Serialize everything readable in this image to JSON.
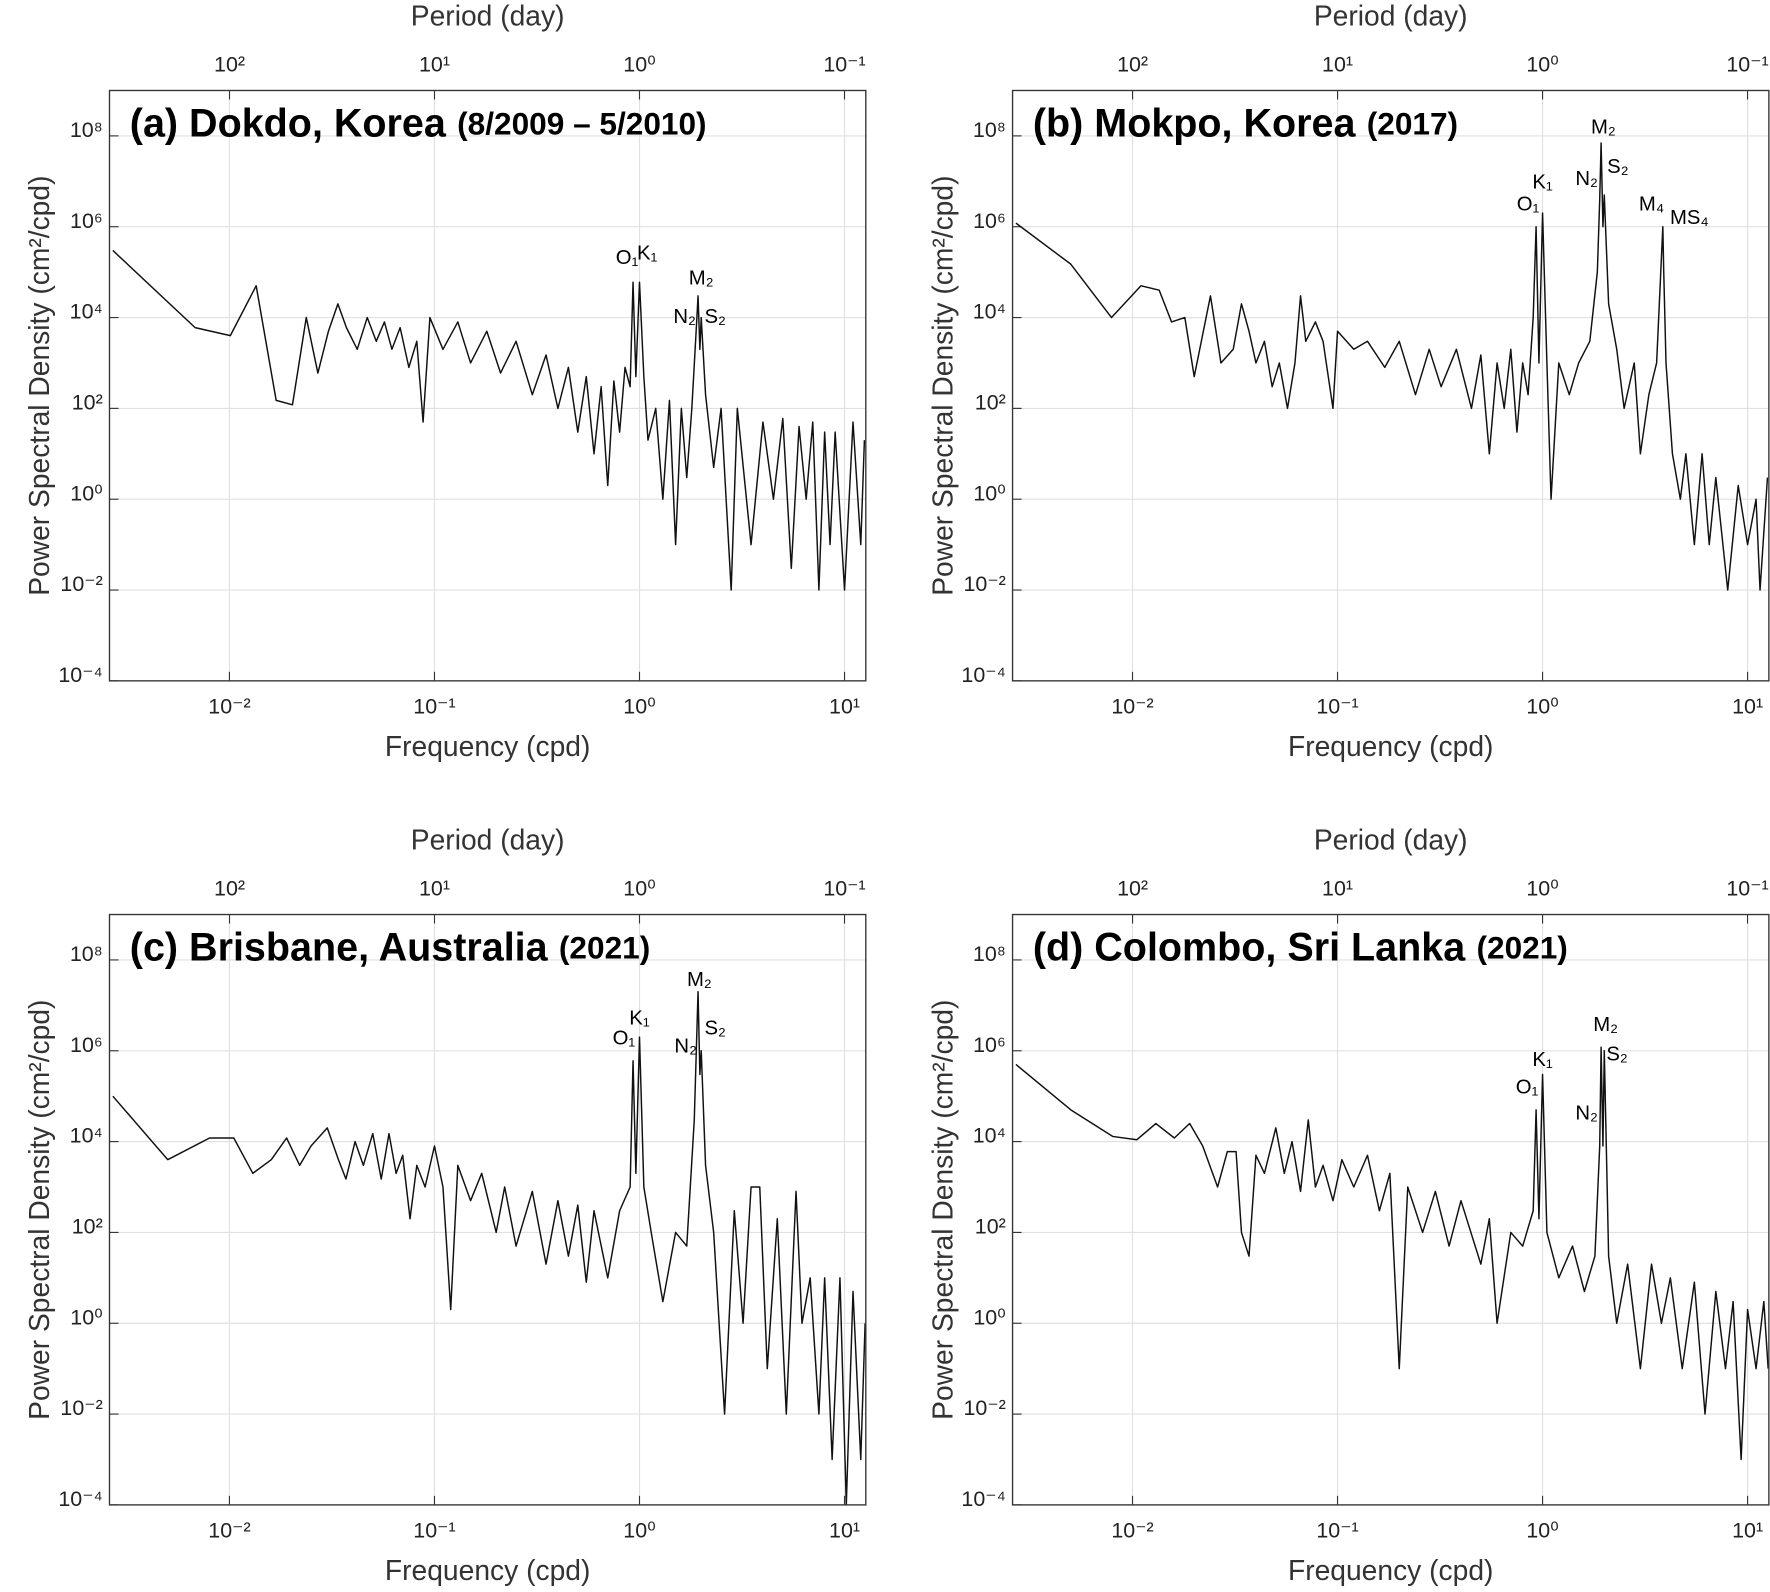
{
  "chart_data": [
    {
      "type": "line",
      "title": "(a) Dokdo, Korea",
      "subtitle": "(8/2009 – 5/2010)",
      "xlabel": "Frequency (cpd)",
      "ylabel": "Power Spectral Density (cm²/cpd)",
      "x2label": "Period (day)",
      "xscale": "log",
      "yscale": "log",
      "grid": true,
      "color": "#111111",
      "xlim": [
        0.0026,
        12.7
      ],
      "ylim": [
        0.0001,
        1000000000.0
      ],
      "x2lim": [
        385,
        0.0787
      ],
      "xticks": [
        {
          "value": 0.01,
          "label": "10⁻²"
        },
        {
          "value": 0.1,
          "label": "10⁻¹"
        },
        {
          "value": 1,
          "label": "10⁰"
        },
        {
          "value": 10,
          "label": "10¹"
        }
      ],
      "x2ticks": [
        {
          "value": 100,
          "label": "10²"
        },
        {
          "value": 10,
          "label": "10¹"
        },
        {
          "value": 1,
          "label": "10⁰"
        },
        {
          "value": 0.1,
          "label": "10⁻¹"
        }
      ],
      "yticks": [
        {
          "value": 0.0001,
          "label": "10⁻⁴"
        },
        {
          "value": 0.01,
          "label": "10⁻²"
        },
        {
          "value": 1,
          "label": "10⁰"
        },
        {
          "value": 100,
          "label": "10²"
        },
        {
          "value": 10000.0,
          "label": "10⁴"
        },
        {
          "value": 1000000.0,
          "label": "10⁶"
        },
        {
          "value": 100000000.0,
          "label": "10⁸"
        }
      ],
      "x": [
        0.0027,
        0.0068,
        0.0101,
        0.0135,
        0.0169,
        0.0203,
        0.0237,
        0.027,
        0.0304,
        0.0338,
        0.0372,
        0.042,
        0.047,
        0.052,
        0.057,
        0.062,
        0.068,
        0.075,
        0.082,
        0.088,
        0.095,
        0.11,
        0.13,
        0.15,
        0.18,
        0.21,
        0.25,
        0.3,
        0.35,
        0.4,
        0.45,
        0.5,
        0.55,
        0.6,
        0.65,
        0.7,
        0.75,
        0.8,
        0.85,
        0.9,
        0.93,
        0.96,
        1.0,
        1.05,
        1.1,
        1.2,
        1.3,
        1.4,
        1.5,
        1.6,
        1.7,
        1.8,
        1.9,
        1.93,
        1.97,
        2.0,
        2.1,
        2.3,
        2.5,
        2.8,
        3.0,
        3.5,
        4.0,
        4.5,
        5.0,
        5.5,
        6.0,
        6.5,
        7.0,
        7.5,
        8.0,
        8.5,
        9.0,
        10,
        11,
        12,
        12.5
      ],
      "values": [
        300000.0,
        6000.0,
        4000.0,
        50000.0,
        150,
        120,
        10000.0,
        600,
        5000.0,
        20000.0,
        6000.0,
        2000.0,
        10000.0,
        3000.0,
        8000.0,
        2000.0,
        6000.0,
        800,
        3000.0,
        50,
        10000.0,
        2000.0,
        8000.0,
        1000.0,
        5000.0,
        600,
        3000.0,
        200,
        1500,
        100,
        800,
        30,
        500,
        10,
        300,
        2,
        400,
        30,
        800,
        300,
        60000.0,
        500,
        60000.0,
        500,
        20,
        100,
        1,
        150,
        0.1,
        100,
        3,
        100,
        8000.0,
        30000.0,
        2000.0,
        10000.0,
        200,
        5,
        100,
        0.01,
        100,
        0.1,
        50,
        1,
        60,
        0.03,
        40,
        1,
        50,
        0.01,
        30,
        0.1,
        30,
        0.01,
        50,
        0.1,
        20
      ],
      "annotations": [
        {
          "text": "O₁",
          "x": 0.87,
          "y": 200000.0
        },
        {
          "text": "K₁",
          "x": 1.09,
          "y": 250000.0
        },
        {
          "text": "M₂",
          "x": 2.0,
          "y": 70000.0
        },
        {
          "text": "N₂",
          "x": 1.66,
          "y": 10000.0
        },
        {
          "text": "S₂",
          "x": 2.34,
          "y": 10000.0
        }
      ]
    },
    {
      "type": "line",
      "title": "(b) Mokpo, Korea",
      "subtitle": "(2017)",
      "xlabel": "Frequency (cpd)",
      "ylabel": "Power Spectral Density (cm²/cpd)",
      "x2label": "Period (day)",
      "xscale": "log",
      "yscale": "log",
      "grid": true,
      "color": "#111111",
      "xlim": [
        0.0026,
        12.7
      ],
      "ylim": [
        0.0001,
        1000000000.0
      ],
      "x2lim": [
        385,
        0.0787
      ],
      "xticks": [
        {
          "value": 0.01,
          "label": "10⁻²"
        },
        {
          "value": 0.1,
          "label": "10⁻¹"
        },
        {
          "value": 1,
          "label": "10⁰"
        },
        {
          "value": 10,
          "label": "10¹"
        }
      ],
      "x2ticks": [
        {
          "value": 100,
          "label": "10²"
        },
        {
          "value": 10,
          "label": "10¹"
        },
        {
          "value": 1,
          "label": "10⁰"
        },
        {
          "value": 0.1,
          "label": "10⁻¹"
        }
      ],
      "yticks": [
        {
          "value": 0.0001,
          "label": "10⁻⁴"
        },
        {
          "value": 0.01,
          "label": "10⁻²"
        },
        {
          "value": 1,
          "label": "10⁰"
        },
        {
          "value": 100,
          "label": "10²"
        },
        {
          "value": 10000.0,
          "label": "10⁴"
        },
        {
          "value": 1000000.0,
          "label": "10⁶"
        },
        {
          "value": 100000000.0,
          "label": "10⁸"
        }
      ],
      "x": [
        0.0027,
        0.005,
        0.0079,
        0.011,
        0.0135,
        0.0155,
        0.018,
        0.02,
        0.024,
        0.027,
        0.031,
        0.034,
        0.037,
        0.04,
        0.044,
        0.048,
        0.052,
        0.057,
        0.062,
        0.066,
        0.07,
        0.078,
        0.085,
        0.095,
        0.1,
        0.12,
        0.14,
        0.17,
        0.2,
        0.24,
        0.28,
        0.32,
        0.38,
        0.45,
        0.5,
        0.55,
        0.6,
        0.65,
        0.7,
        0.75,
        0.8,
        0.85,
        0.9,
        0.93,
        0.96,
        1.0,
        1.05,
        1.1,
        1.2,
        1.35,
        1.5,
        1.7,
        1.85,
        1.9,
        1.93,
        1.97,
        2.0,
        2.1,
        2.3,
        2.5,
        2.8,
        3.0,
        3.3,
        3.6,
        3.86,
        3.9,
        4.0,
        4.3,
        4.7,
        5.0,
        5.5,
        6.0,
        6.5,
        7.0,
        8.0,
        9.0,
        10,
        11,
        11.5,
        12.5
      ],
      "values": [
        1200000.0,
        150000.0,
        10000.0,
        50000.0,
        40000.0,
        8000.0,
        10000.0,
        500,
        30000.0,
        1000.0,
        2000.0,
        20000.0,
        5000.0,
        1000.0,
        3000.0,
        300,
        1000.0,
        100,
        1000.0,
        30000.0,
        3000.0,
        8000.0,
        3000.0,
        100,
        5000.0,
        2000.0,
        3000.0,
        800,
        3000.0,
        200,
        2000.0,
        300,
        2000.0,
        100,
        1500,
        10,
        1000.0,
        100,
        2000.0,
        30,
        1000.0,
        200,
        10000.0,
        1000000.0,
        1000.0,
        2000000.0,
        1000.0,
        1,
        1000.0,
        200,
        1000.0,
        3000.0,
        100000.0,
        4000000.0,
        70000000.0,
        1000000.0,
        5000000.0,
        20000.0,
        2000.0,
        100,
        1000.0,
        10,
        200,
        1000.0,
        1000000.0,
        100000.0,
        1000.0,
        10,
        1,
        10,
        0.1,
        10,
        0.1,
        3,
        0.01,
        2,
        0.1,
        1,
        0.01,
        3
      ],
      "annotations": [
        {
          "text": "O₁",
          "x": 0.85,
          "y": 3000000.0
        },
        {
          "text": "K₁",
          "x": 1.0,
          "y": 9000000.0
        },
        {
          "text": "N₂",
          "x": 1.64,
          "y": 11000000.0
        },
        {
          "text": "M₂",
          "x": 1.98,
          "y": 150000000.0
        },
        {
          "text": "S₂",
          "x": 2.33,
          "y": 20000000.0
        },
        {
          "text": "M₄",
          "x": 3.4,
          "y": 3000000.0
        },
        {
          "text": "MS₄",
          "x": 5.2,
          "y": 1500000.0
        }
      ]
    },
    {
      "type": "line",
      "title": "(c) Brisbane, Australia",
      "subtitle": "(2021)",
      "xlabel": "Frequency (cpd)",
      "ylabel": "Power Spectral Density (cm²/cpd)",
      "x2label": "Period (day)",
      "xscale": "log",
      "yscale": "log",
      "grid": true,
      "color": "#111111",
      "xlim": [
        0.0026,
        12.7
      ],
      "ylim": [
        0.0001,
        1000000000.0
      ],
      "x2lim": [
        385,
        0.0787
      ],
      "xticks": [
        {
          "value": 0.01,
          "label": "10⁻²"
        },
        {
          "value": 0.1,
          "label": "10⁻¹"
        },
        {
          "value": 1,
          "label": "10⁰"
        },
        {
          "value": 10,
          "label": "10¹"
        }
      ],
      "x2ticks": [
        {
          "value": 100,
          "label": "10²"
        },
        {
          "value": 10,
          "label": "10¹"
        },
        {
          "value": 1,
          "label": "10⁰"
        },
        {
          "value": 0.1,
          "label": "10⁻¹"
        }
      ],
      "yticks": [
        {
          "value": 0.0001,
          "label": "10⁻⁴"
        },
        {
          "value": 0.01,
          "label": "10⁻²"
        },
        {
          "value": 1,
          "label": "10⁰"
        },
        {
          "value": 100,
          "label": "10²"
        },
        {
          "value": 10000.0,
          "label": "10⁴"
        },
        {
          "value": 1000000.0,
          "label": "10⁶"
        },
        {
          "value": 100000000.0,
          "label": "10⁸"
        }
      ],
      "x": [
        0.0027,
        0.005,
        0.008,
        0.0105,
        0.013,
        0.016,
        0.019,
        0.022,
        0.025,
        0.03,
        0.034,
        0.037,
        0.041,
        0.045,
        0.05,
        0.055,
        0.06,
        0.065,
        0.07,
        0.076,
        0.082,
        0.09,
        0.1,
        0.11,
        0.12,
        0.13,
        0.15,
        0.17,
        0.2,
        0.22,
        0.25,
        0.3,
        0.35,
        0.4,
        0.45,
        0.5,
        0.55,
        0.6,
        0.7,
        0.8,
        0.9,
        0.93,
        0.96,
        1.0,
        1.05,
        1.15,
        1.3,
        1.5,
        1.7,
        1.85,
        1.93,
        1.97,
        2.0,
        2.1,
        2.3,
        2.6,
        2.9,
        3.2,
        3.5,
        3.86,
        4.2,
        4.7,
        5.2,
        5.8,
        6.2,
        6.8,
        7.5,
        8.0,
        8.7,
        9.5,
        10.2,
        11,
        12,
        12.6
      ],
      "values": [
        100000.0,
        4000.0,
        12000.0,
        12000.0,
        2000.0,
        4000.0,
        12000.0,
        3000.0,
        8000.0,
        20000.0,
        4000.0,
        1500.0,
        10000.0,
        3000.0,
        15000.0,
        1500.0,
        15000.0,
        2000.0,
        5000.0,
        200,
        3000.0,
        1000.0,
        8000.0,
        1000.0,
        2,
        3000.0,
        500,
        2000.0,
        100,
        1000.0,
        50,
        800,
        20,
        500,
        30,
        400,
        8,
        300,
        10,
        300,
        1000.0,
        600000.0,
        2000.0,
        2000000.0,
        1000.0,
        80,
        3,
        100,
        50,
        30000.0,
        20000000.0,
        300000.0,
        1000000.0,
        3000.0,
        100,
        0.01,
        300,
        1,
        1000.0,
        1000.0,
        0.1,
        200,
        0.01,
        800,
        1,
        10,
        0.01,
        10,
        0.001,
        10,
        0.0001,
        5,
        0.001,
        1
      ],
      "annotations": [
        {
          "text": "O₁",
          "x": 0.84,
          "y": 1800000.0
        },
        {
          "text": "K₁",
          "x": 1.0,
          "y": 5000000.0
        },
        {
          "text": "M₂",
          "x": 1.96,
          "y": 35000000.0
        },
        {
          "text": "N₂",
          "x": 1.68,
          "y": 1200000.0
        },
        {
          "text": "S₂",
          "x": 2.34,
          "y": 3000000.0
        }
      ]
    },
    {
      "type": "line",
      "title": "(d) Colombo, Sri Lanka",
      "subtitle": "(2021)",
      "xlabel": "Frequency (cpd)",
      "ylabel": "Power Spectral Density (cm²/cpd)",
      "x2label": "Period (day)",
      "xscale": "log",
      "yscale": "log",
      "grid": true,
      "color": "#111111",
      "xlim": [
        0.0026,
        12.7
      ],
      "ylim": [
        0.0001,
        1000000000.0
      ],
      "x2lim": [
        385,
        0.0787
      ],
      "xticks": [
        {
          "value": 0.01,
          "label": "10⁻²"
        },
        {
          "value": 0.1,
          "label": "10⁻¹"
        },
        {
          "value": 1,
          "label": "10⁰"
        },
        {
          "value": 10,
          "label": "10¹"
        }
      ],
      "x2ticks": [
        {
          "value": 100,
          "label": "10²"
        },
        {
          "value": 10,
          "label": "10¹"
        },
        {
          "value": 1,
          "label": "10⁰"
        },
        {
          "value": 0.1,
          "label": "10⁻¹"
        }
      ],
      "yticks": [
        {
          "value": 0.0001,
          "label": "10⁻⁴"
        },
        {
          "value": 0.01,
          "label": "10⁻²"
        },
        {
          "value": 1,
          "label": "10⁰"
        },
        {
          "value": 100,
          "label": "10²"
        },
        {
          "value": 10000.0,
          "label": "10⁴"
        },
        {
          "value": 1000000.0,
          "label": "10⁶"
        },
        {
          "value": 100000000.0,
          "label": "10⁸"
        }
      ],
      "x": [
        0.0027,
        0.005,
        0.008,
        0.0105,
        0.013,
        0.016,
        0.019,
        0.022,
        0.026,
        0.029,
        0.032,
        0.034,
        0.037,
        0.04,
        0.044,
        0.05,
        0.055,
        0.06,
        0.066,
        0.072,
        0.078,
        0.085,
        0.095,
        0.105,
        0.12,
        0.14,
        0.16,
        0.18,
        0.2,
        0.22,
        0.26,
        0.3,
        0.35,
        0.4,
        0.5,
        0.55,
        0.6,
        0.7,
        0.8,
        0.9,
        0.93,
        0.96,
        1.0,
        1.05,
        1.2,
        1.4,
        1.6,
        1.8,
        1.9,
        1.93,
        1.97,
        2.0,
        2.1,
        2.3,
        2.6,
        3.0,
        3.4,
        3.8,
        4.2,
        4.8,
        5.5,
        6.2,
        7.0,
        7.8,
        8.5,
        9.3,
        10,
        11,
        12,
        12.6
      ],
      "values": [
        500000.0,
        50000.0,
        13000.0,
        11000.0,
        25000.0,
        12000.0,
        25000.0,
        8000.0,
        1000.0,
        6000.0,
        6000.0,
        100,
        30,
        5000.0,
        2000.0,
        20000.0,
        2000.0,
        10000.0,
        800,
        30000.0,
        1000.0,
        3000.0,
        500,
        4000.0,
        1000.0,
        5000.0,
        300,
        2000.0,
        0.1,
        1000.0,
        100,
        800,
        50,
        500,
        20,
        200,
        1,
        100,
        50,
        300,
        50000.0,
        200,
        300000.0,
        100,
        10,
        50,
        5,
        30,
        8000.0,
        1200000.0,
        8000.0,
        1000000.0,
        30,
        1,
        20,
        0.1,
        20,
        1,
        10,
        0.1,
        8,
        0.01,
        5,
        0.1,
        3,
        0.001,
        2,
        0.1,
        3,
        0.1
      ],
      "annotations": [
        {
          "text": "O₁",
          "x": 0.84,
          "y": 150000.0
        },
        {
          "text": "K₁",
          "x": 1.0,
          "y": 600000.0
        },
        {
          "text": "M₂",
          "x": 2.03,
          "y": 3600000.0
        },
        {
          "text": "S₂",
          "x": 2.31,
          "y": 800000.0
        },
        {
          "text": "N₂",
          "x": 1.64,
          "y": 40000.0
        }
      ]
    }
  ]
}
